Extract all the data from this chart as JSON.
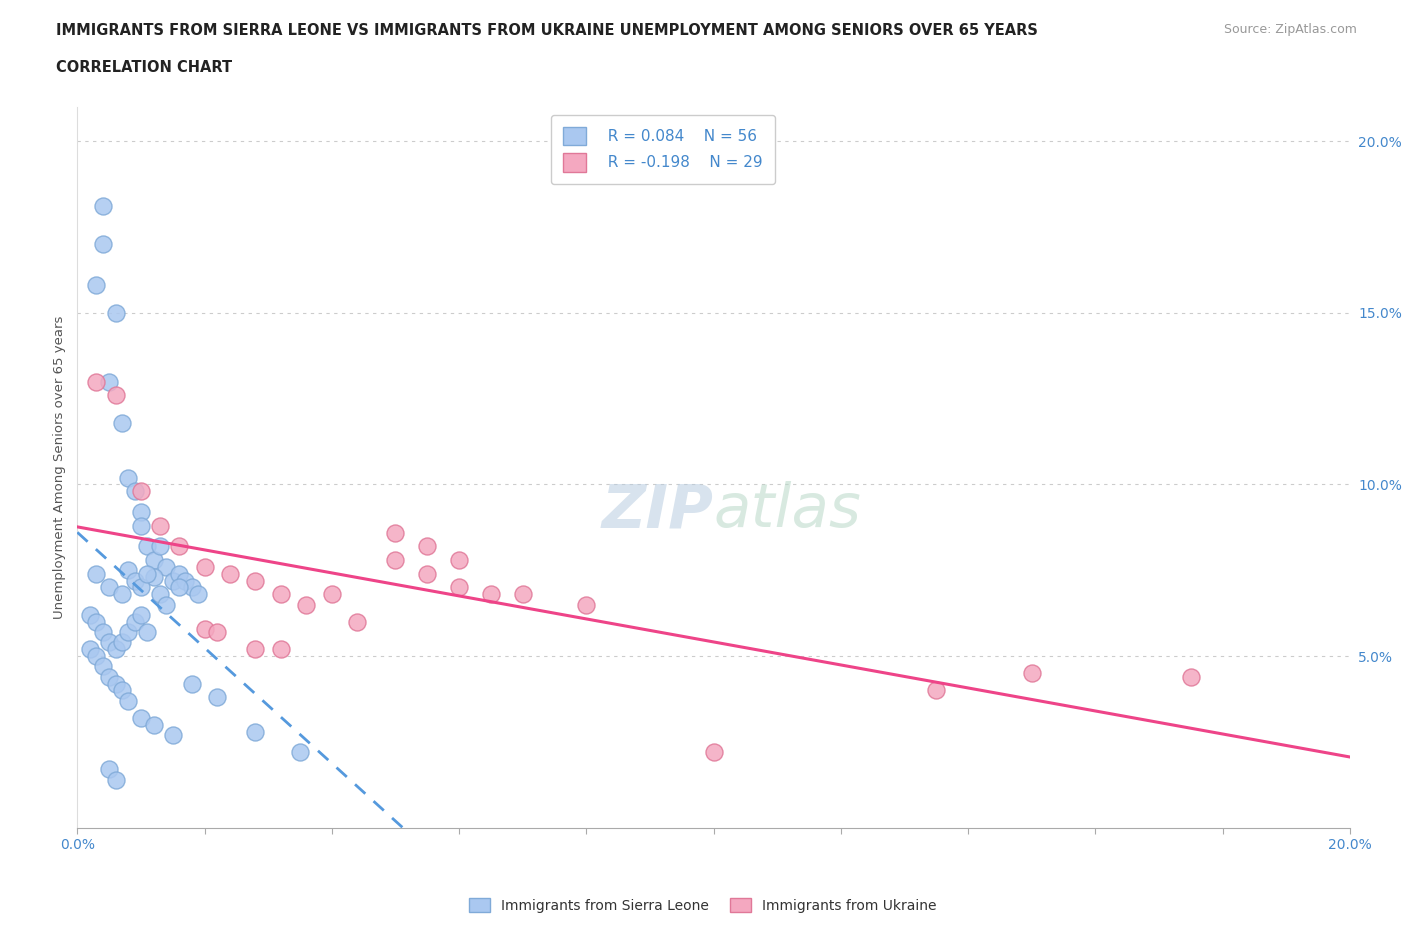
{
  "title_line1": "IMMIGRANTS FROM SIERRA LEONE VS IMMIGRANTS FROM UKRAINE UNEMPLOYMENT AMONG SENIORS OVER 65 YEARS",
  "title_line2": "CORRELATION CHART",
  "source_text": "Source: ZipAtlas.com",
  "ylabel": "Unemployment Among Seniors over 65 years",
  "xlim": [
    0.0,
    0.2
  ],
  "ylim": [
    0.0,
    0.21
  ],
  "yticks": [
    0.05,
    0.1,
    0.15,
    0.2
  ],
  "ytick_labels": [
    "5.0%",
    "10.0%",
    "15.0%",
    "20.0%"
  ],
  "xticks": [
    0.0,
    0.02,
    0.04,
    0.06,
    0.08,
    0.1,
    0.12,
    0.14,
    0.16,
    0.18,
    0.2
  ],
  "legend_R1": "R = 0.084",
  "legend_N1": "N = 56",
  "legend_R2": "R = -0.198",
  "legend_N2": "N = 29",
  "sierra_leone_color": "#aac8f0",
  "ukraine_color": "#f4a8c0",
  "sierra_leone_edge": "#80aad8",
  "ukraine_edge": "#e07898",
  "trend_sierra_color": "#5599dd",
  "trend_ukraine_color": "#ee4488",
  "background_color": "#ffffff",
  "watermark_color": "#ccd8e8",
  "sl_x": [
    0.004,
    0.004,
    0.003,
    0.006,
    0.005,
    0.007,
    0.008,
    0.009,
    0.01,
    0.01,
    0.011,
    0.012,
    0.013,
    0.014,
    0.012,
    0.015,
    0.016,
    0.017,
    0.018,
    0.019,
    0.003,
    0.005,
    0.007,
    0.008,
    0.009,
    0.01,
    0.011,
    0.013,
    0.014,
    0.016,
    0.002,
    0.003,
    0.004,
    0.005,
    0.006,
    0.007,
    0.008,
    0.009,
    0.01,
    0.011,
    0.002,
    0.003,
    0.004,
    0.005,
    0.006,
    0.007,
    0.008,
    0.01,
    0.012,
    0.015,
    0.018,
    0.022,
    0.028,
    0.035,
    0.005,
    0.006
  ],
  "sl_y": [
    0.181,
    0.17,
    0.158,
    0.15,
    0.13,
    0.118,
    0.102,
    0.098,
    0.092,
    0.088,
    0.082,
    0.078,
    0.082,
    0.076,
    0.073,
    0.072,
    0.074,
    0.072,
    0.07,
    0.068,
    0.074,
    0.07,
    0.068,
    0.075,
    0.072,
    0.07,
    0.074,
    0.068,
    0.065,
    0.07,
    0.062,
    0.06,
    0.057,
    0.054,
    0.052,
    0.054,
    0.057,
    0.06,
    0.062,
    0.057,
    0.052,
    0.05,
    0.047,
    0.044,
    0.042,
    0.04,
    0.037,
    0.032,
    0.03,
    0.027,
    0.042,
    0.038,
    0.028,
    0.022,
    0.017,
    0.014
  ],
  "uk_x": [
    0.003,
    0.006,
    0.01,
    0.013,
    0.016,
    0.02,
    0.024,
    0.028,
    0.032,
    0.036,
    0.04,
    0.044,
    0.05,
    0.055,
    0.06,
    0.07,
    0.08,
    0.05,
    0.055,
    0.06,
    0.065,
    0.02,
    0.022,
    0.028,
    0.032,
    0.15,
    0.175,
    0.1,
    0.135
  ],
  "uk_y": [
    0.13,
    0.126,
    0.098,
    0.088,
    0.082,
    0.076,
    0.074,
    0.072,
    0.068,
    0.065,
    0.068,
    0.06,
    0.078,
    0.074,
    0.07,
    0.068,
    0.065,
    0.086,
    0.082,
    0.078,
    0.068,
    0.058,
    0.057,
    0.052,
    0.052,
    0.045,
    0.044,
    0.022,
    0.04
  ],
  "trend_sl_x0": 0.0,
  "trend_sl_x1": 0.2,
  "trend_uk_x0": 0.0,
  "trend_uk_x1": 0.2
}
